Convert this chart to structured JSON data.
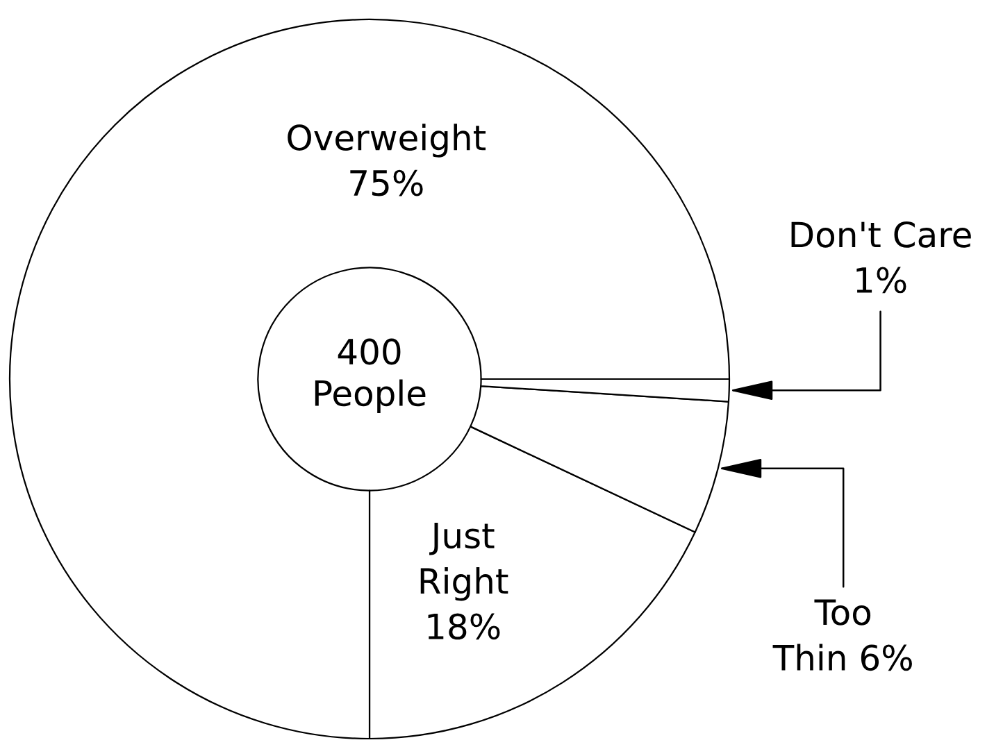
{
  "chart_data": {
    "type": "donut",
    "categories": [
      "Just\nRight",
      "Too\nThin",
      "Don't Care",
      "Overweight"
    ],
    "values": [
      18,
      6,
      1,
      75
    ],
    "colors": [
      "#ffffff",
      "#ffffff",
      "#ffffff",
      "#ffffff"
    ],
    "value_labels": [
      "18%",
      "6%",
      "1%",
      "75%"
    ],
    "annotations": [
      "400\nPeople"
    ]
  }
}
